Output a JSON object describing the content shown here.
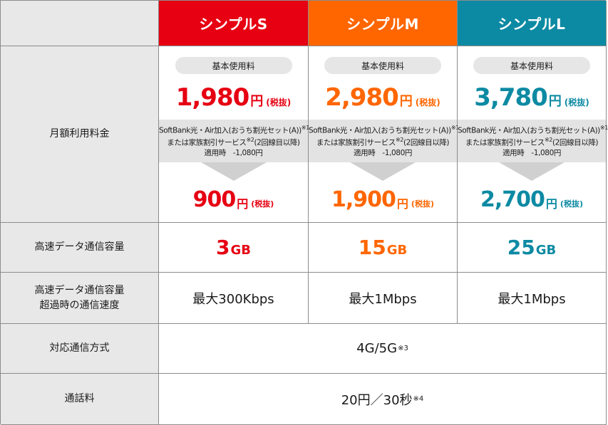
{
  "colors": {
    "plan_s": "#e60012",
    "plan_m": "#ff6600",
    "plan_l": "#0d8aa3",
    "label_bg": "#e8e8e8"
  },
  "rows": {
    "monthly_fee": "月額利用料金",
    "high_speed_data": "高速データ通信容量",
    "over_limit_line1": "高速データ通信容量",
    "over_limit_line2": "超過時の通信速度",
    "network": "対応通信方式",
    "call_fee": "通話料"
  },
  "plans": [
    {
      "name": "シンプルS",
      "base_label": "基本使用料",
      "price": "1,980",
      "yen": "円",
      "tax": "(税抜)",
      "discount_line1": "SoftBank光・Air加入(おうち割光セット(A))",
      "discount_note1": "※1",
      "discount_line2_pre": "または家族割引サービス",
      "discount_note2": "※2",
      "discount_line2_post": "(2回線目以降)",
      "discount_line3": "適用時　-1,080円",
      "discount_price": "900",
      "data_num": "3",
      "data_unit": "GB",
      "speed": "最大300Kbps"
    },
    {
      "name": "シンプルM",
      "base_label": "基本使用料",
      "price": "2,980",
      "yen": "円",
      "tax": "(税抜)",
      "discount_line1": "SoftBank光・Air加入(おうち割光セット(A))",
      "discount_note1": "※1",
      "discount_line2_pre": "または家族割引サービス",
      "discount_note2": "※2",
      "discount_line2_post": "(2回線目以降)",
      "discount_line3": "適用時　-1,080円",
      "discount_price": "1,900",
      "data_num": "15",
      "data_unit": "GB",
      "speed": "最大1Mbps"
    },
    {
      "name": "シンプルL",
      "base_label": "基本使用料",
      "price": "3,780",
      "yen": "円",
      "tax": "(税抜)",
      "discount_line1": "SoftBank光・Air加入(おうち割光セット(A))",
      "discount_note1": "※1",
      "discount_line2_pre": "または家族割引サービス",
      "discount_note2": "※2",
      "discount_line2_post": "(2回線目以降)",
      "discount_line3": "適用時　-1,080円",
      "discount_price": "2,700",
      "data_num": "25",
      "data_unit": "GB",
      "speed": "最大1Mbps"
    }
  ],
  "network": {
    "value": "4G/5G",
    "note": "※3"
  },
  "call": {
    "value": "20円／30秒",
    "note": "※4"
  },
  "icons": {
    "discount_arrow": "down-arrow-icon"
  }
}
